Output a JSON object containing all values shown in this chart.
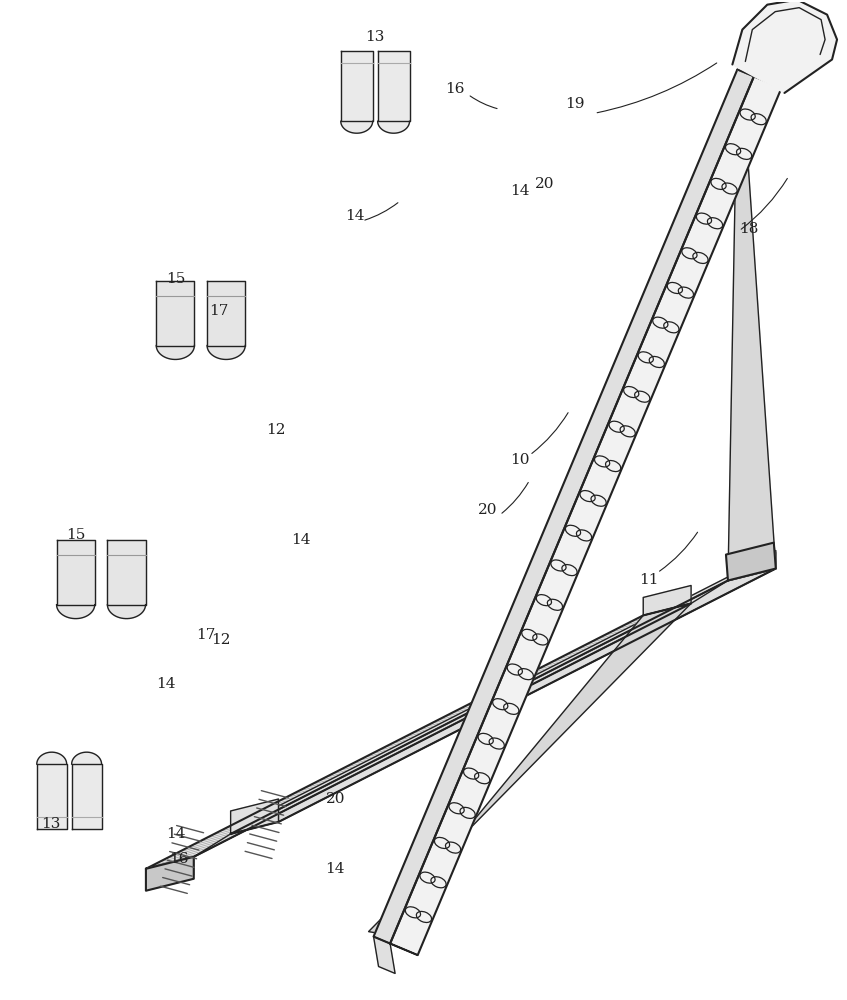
{
  "background_color": "#ffffff",
  "line_color": "#222222",
  "fill_white": "#ffffff",
  "fill_light": "#f2f2f2",
  "fill_medium": "#e0e0e0",
  "fill_dark": "#c8c8c8",
  "fill_gray": "#d8d8d8"
}
